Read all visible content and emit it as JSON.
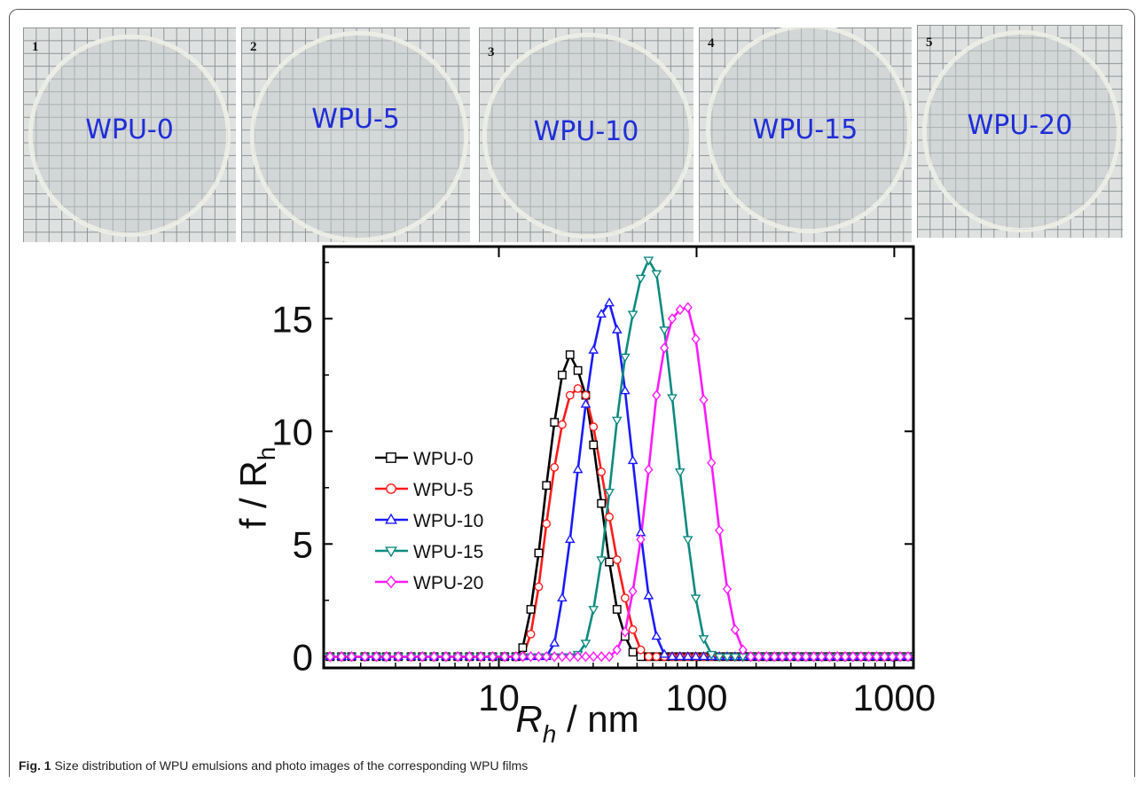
{
  "photos": [
    {
      "number": "1",
      "label": "WPU-0"
    },
    {
      "number": "2",
      "label": "WPU-5"
    },
    {
      "number": "3",
      "label": "WPU-10"
    },
    {
      "number": "4",
      "label": "WPU-15"
    },
    {
      "number": "5",
      "label": "WPU-20"
    }
  ],
  "caption": {
    "prefix": "Fig. 1",
    "text": " Size distribution of WPU emulsions and photo images of the corresponding WPU films"
  },
  "chart_data": {
    "type": "line",
    "xlabel_main": "R",
    "xlabel_sub": "h",
    "xlabel_unit": " / nm",
    "ylabel_main": "f / R",
    "ylabel_sub": "h",
    "xscale": "log",
    "xlim": [
      1.3,
      1250
    ],
    "ylim": [
      -0.5,
      18.2
    ],
    "xticks": [
      10,
      100,
      1000
    ],
    "xtick_labels": [
      "10",
      "100",
      "1000"
    ],
    "yticks": [
      0,
      5,
      10,
      15
    ],
    "ytick_labels": [
      "0",
      "5",
      "10",
      "15"
    ],
    "legend_position": "center-left",
    "grid": false,
    "series": [
      {
        "name": "WPU-0",
        "color": "#000000",
        "marker": "square",
        "x": [
          1.4,
          1.6,
          1.8,
          2.1,
          2.4,
          2.7,
          3.1,
          3.6,
          4.1,
          4.7,
          5.4,
          6.2,
          7.1,
          8.1,
          9.3,
          10.7,
          12.2,
          13.2,
          14.5,
          15.9,
          17.4,
          19.1,
          20.9,
          22.9,
          25.1,
          27.5,
          30.1,
          33.0,
          36.2,
          39.6,
          43.5,
          47.6,
          52.2,
          57.2,
          62.7,
          68.7,
          75.3,
          82.5,
          90.4,
          99.1,
          108.6,
          119.0,
          130.4,
          142.9,
          156.6,
          171.6,
          188.1,
          206.2,
          225.9,
          247.6,
          271.3,
          297.4,
          325.9,
          357.2,
          391.4,
          428.9,
          470.1,
          515.2,
          564.6,
          618.8,
          678.1,
          743.2,
          814.5,
          892.6,
          978.2,
          1072.0,
          1175.0
        ],
        "y": [
          0,
          0,
          0,
          0,
          0,
          0,
          0,
          0,
          0,
          0,
          0,
          0,
          0,
          0,
          0,
          0,
          0,
          0.4,
          2.1,
          4.6,
          7.6,
          10.4,
          12.5,
          13.4,
          12.7,
          11.6,
          9.4,
          6.8,
          4.2,
          2.1,
          0.9,
          0.2,
          0,
          0,
          0,
          0,
          0,
          0,
          0,
          0,
          0,
          0,
          0,
          0,
          0,
          0,
          0,
          0,
          0,
          0,
          0,
          0,
          0,
          0,
          0,
          0,
          0,
          0,
          0,
          0,
          0,
          0,
          0,
          0,
          0,
          0,
          0
        ]
      },
      {
        "name": "WPU-5",
        "color": "#ff1a1a",
        "marker": "circle",
        "x": [
          1.4,
          1.6,
          1.8,
          2.1,
          2.4,
          2.7,
          3.1,
          3.6,
          4.1,
          4.7,
          5.4,
          6.2,
          7.1,
          8.1,
          9.3,
          10.7,
          12.2,
          13.2,
          14.5,
          15.9,
          17.4,
          19.1,
          20.9,
          22.9,
          25.1,
          27.5,
          30.1,
          33.0,
          36.2,
          39.6,
          43.5,
          47.6,
          52.2,
          57.2,
          62.7,
          68.7,
          75.3,
          82.5,
          90.4,
          99.1,
          108.6,
          119.0,
          130.4,
          142.9,
          156.6,
          171.6,
          188.1,
          206.2,
          225.9,
          247.6,
          271.3,
          297.4,
          325.9,
          357.2,
          391.4,
          428.9,
          470.1,
          515.2,
          564.6,
          618.8,
          678.1,
          743.2,
          814.5,
          892.6,
          978.2,
          1072.0,
          1175.0
        ],
        "y": [
          0,
          0,
          0,
          0,
          0,
          0,
          0,
          0,
          0,
          0,
          0,
          0,
          0,
          0,
          0,
          0,
          0,
          0,
          1.0,
          3.1,
          5.9,
          8.4,
          10.3,
          11.6,
          11.9,
          11.6,
          10.2,
          8.2,
          6.2,
          4.3,
          2.6,
          1.2,
          0.3,
          0,
          0,
          0,
          0,
          0,
          0,
          0,
          0,
          0,
          0,
          0,
          0,
          0,
          0,
          0,
          0,
          0,
          0,
          0,
          0,
          0,
          0,
          0,
          0,
          0,
          0,
          0,
          0,
          0,
          0,
          0,
          0,
          0,
          0
        ]
      },
      {
        "name": "WPU-10",
        "color": "#1a1aff",
        "marker": "triangle-up",
        "x": [
          1.4,
          1.6,
          1.8,
          2.1,
          2.4,
          2.7,
          3.1,
          3.6,
          4.1,
          4.7,
          5.4,
          6.2,
          7.1,
          8.1,
          9.3,
          10.7,
          12.2,
          13.2,
          14.5,
          15.9,
          17.4,
          19.1,
          20.9,
          22.9,
          25.1,
          27.5,
          30.1,
          33.0,
          36.2,
          39.6,
          43.5,
          47.6,
          52.2,
          57.2,
          62.7,
          68.7,
          75.3,
          82.5,
          90.4,
          99.1,
          108.6,
          119.0,
          130.4,
          142.9,
          156.6,
          171.6,
          188.1,
          206.2,
          225.9,
          247.6,
          271.3,
          297.4,
          325.9,
          357.2,
          391.4,
          428.9,
          470.1,
          515.2,
          564.6,
          618.8,
          678.1,
          743.2,
          814.5,
          892.6,
          978.2,
          1072.0,
          1175.0
        ],
        "y": [
          0,
          0,
          0,
          0,
          0,
          0,
          0,
          0,
          0,
          0,
          0,
          0,
          0,
          0,
          0,
          0,
          0,
          0,
          0,
          0,
          0,
          0.6,
          2.6,
          5.2,
          8.3,
          11.2,
          13.6,
          15.2,
          15.7,
          14.5,
          11.8,
          8.7,
          5.5,
          2.7,
          0.9,
          0.1,
          0,
          0,
          0,
          0,
          0,
          0,
          0,
          0,
          0,
          0,
          0,
          0,
          0,
          0,
          0,
          0,
          0,
          0,
          0,
          0,
          0,
          0,
          0,
          0,
          0,
          0,
          0,
          0,
          0,
          0,
          0
        ]
      },
      {
        "name": "WPU-15",
        "color": "#0e8a80",
        "marker": "triangle-down",
        "x": [
          1.4,
          1.6,
          1.8,
          2.1,
          2.4,
          2.7,
          3.1,
          3.6,
          4.1,
          4.7,
          5.4,
          6.2,
          7.1,
          8.1,
          9.3,
          10.7,
          12.2,
          13.2,
          14.5,
          15.9,
          17.4,
          19.1,
          20.9,
          22.9,
          25.1,
          27.5,
          30.1,
          33.0,
          36.2,
          39.6,
          43.5,
          47.6,
          52.2,
          57.2,
          62.7,
          68.7,
          75.3,
          82.5,
          90.4,
          99.1,
          108.6,
          119.0,
          130.4,
          142.9,
          156.6,
          171.6,
          188.1,
          206.2,
          225.9,
          247.6,
          271.3,
          297.4,
          325.9,
          357.2,
          391.4,
          428.9,
          470.1,
          515.2,
          564.6,
          618.8,
          678.1,
          743.2,
          814.5,
          892.6,
          978.2,
          1072.0,
          1175.0
        ],
        "y": [
          0,
          0,
          0,
          0,
          0,
          0,
          0,
          0,
          0,
          0,
          0,
          0,
          0,
          0,
          0,
          0,
          0,
          0,
          0,
          0,
          0,
          0,
          0,
          0,
          0.1,
          0.6,
          2.1,
          4.3,
          7.3,
          10.5,
          13.3,
          15.2,
          16.8,
          17.6,
          17.0,
          14.5,
          11.5,
          8.2,
          5.2,
          2.6,
          0.8,
          0.1,
          0,
          0,
          0,
          0,
          0,
          0,
          0,
          0,
          0,
          0,
          0,
          0,
          0,
          0,
          0,
          0,
          0,
          0,
          0,
          0,
          0,
          0,
          0,
          0,
          0
        ]
      },
      {
        "name": "WPU-20",
        "color": "#ff1aff",
        "marker": "diamond",
        "x": [
          1.4,
          1.6,
          1.8,
          2.1,
          2.4,
          2.7,
          3.1,
          3.6,
          4.1,
          4.7,
          5.4,
          6.2,
          7.1,
          8.1,
          9.3,
          10.7,
          12.2,
          13.2,
          14.5,
          15.9,
          17.4,
          19.1,
          20.9,
          22.9,
          25.1,
          27.5,
          30.1,
          33.0,
          36.2,
          39.6,
          43.5,
          47.6,
          52.2,
          57.2,
          62.7,
          68.7,
          75.3,
          82.5,
          90.4,
          99.1,
          108.6,
          119.0,
          130.4,
          142.9,
          156.6,
          171.6,
          188.1,
          206.2,
          225.9,
          247.6,
          271.3,
          297.4,
          325.9,
          357.2,
          391.4,
          428.9,
          470.1,
          515.2,
          564.6,
          618.8,
          678.1,
          743.2,
          814.5,
          892.6,
          978.2,
          1072.0,
          1175.0
        ],
        "y": [
          0,
          0,
          0,
          0,
          0,
          0,
          0,
          0,
          0,
          0,
          0,
          0,
          0,
          0,
          0,
          0,
          0,
          0,
          0,
          0,
          0,
          0,
          0,
          0,
          0,
          0,
          0,
          0,
          0,
          0.3,
          1.1,
          2.9,
          5.2,
          8.3,
          11.6,
          13.7,
          15.0,
          15.4,
          15.5,
          14.1,
          11.4,
          8.6,
          5.6,
          3.0,
          1.2,
          0.3,
          0,
          0,
          0,
          0,
          0,
          0,
          0,
          0,
          0,
          0,
          0,
          0,
          0,
          0,
          0,
          0,
          0,
          0,
          0,
          0,
          0
        ]
      }
    ]
  }
}
